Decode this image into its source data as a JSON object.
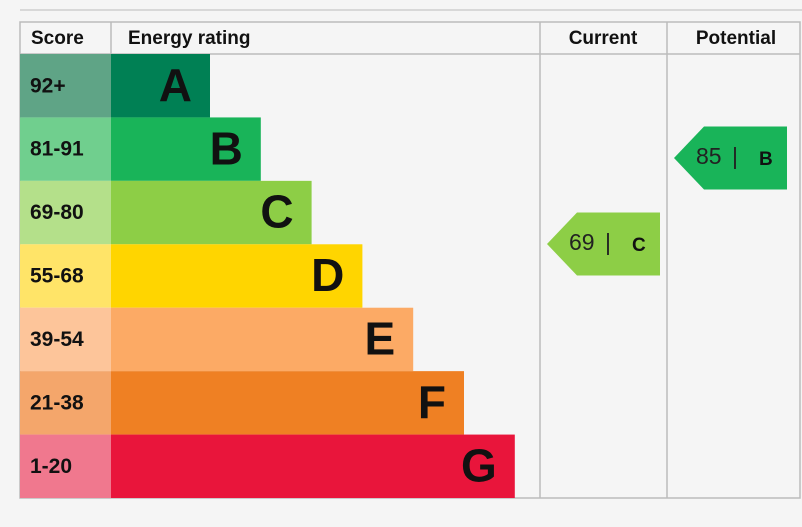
{
  "header": {
    "score": "Score",
    "energy_rating": "Energy rating",
    "current": "Current",
    "potential": "Potential"
  },
  "bands": [
    {
      "score": "92+",
      "rating": "A",
      "color": "#008054",
      "score_color": "#5fa486"
    },
    {
      "score": "81-91",
      "rating": "B",
      "color": "#19b459",
      "score_color": "#70cf8e"
    },
    {
      "score": "69-80",
      "rating": "C",
      "color": "#8dce46",
      "score_color": "#b4e08a"
    },
    {
      "score": "55-68",
      "rating": "D",
      "color": "#ffd500",
      "score_color": "#ffe468"
    },
    {
      "score": "39-54",
      "rating": "E",
      "color": "#fcaa65",
      "score_color": "#fdc59a"
    },
    {
      "score": "21-38",
      "rating": "F",
      "color": "#ef8023",
      "score_color": "#f4a66b"
    },
    {
      "score": "1-20",
      "rating": "G",
      "color": "#e9153b",
      "score_color": "#f0788e"
    }
  ],
  "separator": "|",
  "current": {
    "value": 69,
    "rating": "C"
  },
  "potential": {
    "value": 85,
    "rating": "B"
  }
}
